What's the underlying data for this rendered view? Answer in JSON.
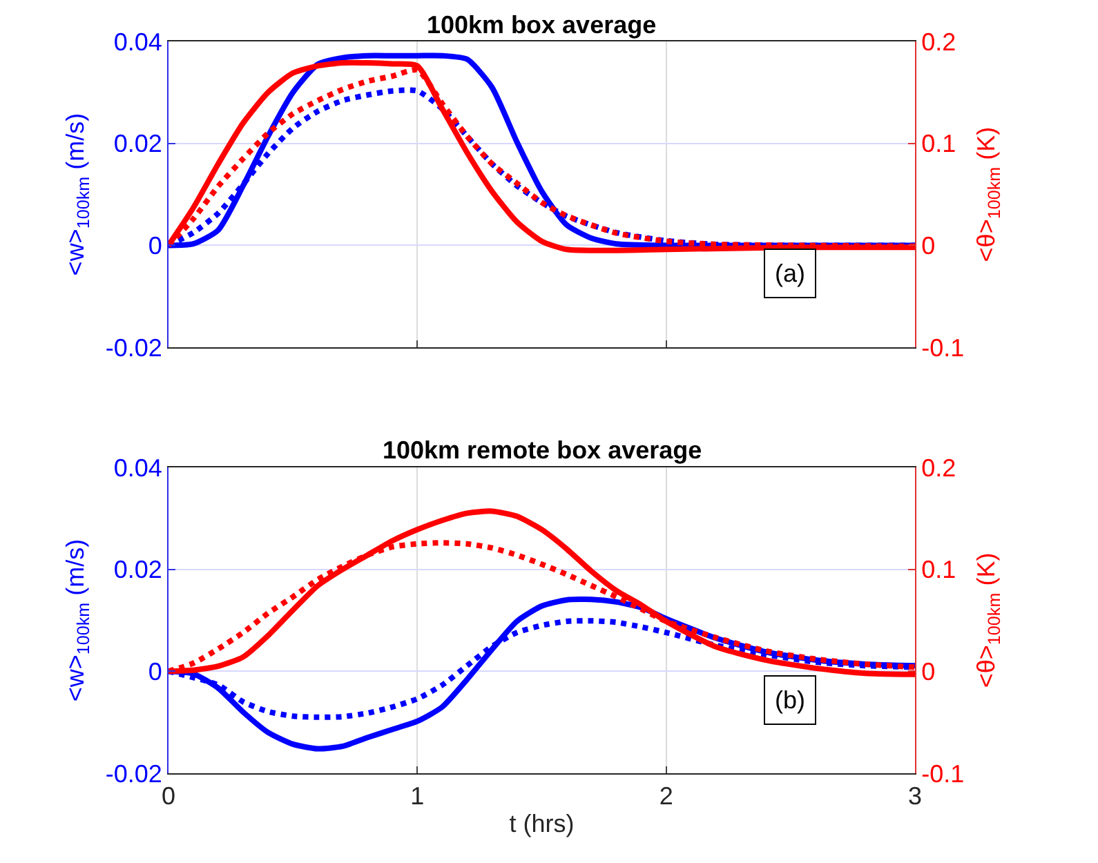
{
  "chart_data": [
    {
      "type": "line",
      "title": "100km box average",
      "ylabel": "<w>$_{100km}$ (m/s)",
      "y2label": "<θ>$_{100km}$ (K)",
      "annotations": [
        "(a)"
      ],
      "xlim": [
        0,
        3
      ],
      "xticks": [
        0,
        1,
        2,
        3
      ],
      "ylim": [
        -0.02,
        0.04
      ],
      "yticks": [
        -0.02,
        0,
        0.02,
        0.04
      ],
      "y2lim": [
        -0.1,
        0.2
      ],
      "y2ticks": [
        -0.1,
        0,
        0.1,
        0.2
      ],
      "grid": true,
      "tick_labels": "y",
      "series": [
        {
          "color": "#0000ff",
          "line_style": "solid",
          "x": [
            0,
            0.1,
            0.2,
            0.3,
            0.4,
            0.5,
            0.6,
            0.7,
            0.8,
            0.9,
            1.0,
            1.1,
            1.2,
            1.3,
            1.4,
            1.5,
            1.6,
            1.7,
            1.8,
            2.0,
            2.5,
            3.0
          ],
          "values": [
            0,
            0.0003,
            0.003,
            0.0117,
            0.0214,
            0.03,
            0.0355,
            0.0368,
            0.0372,
            0.0372,
            0.0372,
            0.0372,
            0.0365,
            0.031,
            0.0203,
            0.0106,
            0.004,
            0.0014,
            0.0003,
            0,
            0,
            0
          ]
        },
        {
          "color": "#ff0000",
          "line_style": "solid",
          "axis": "y2",
          "x": [
            0,
            0.1,
            0.2,
            0.3,
            0.4,
            0.5,
            0.6,
            0.7,
            0.8,
            0.9,
            1.0,
            1.1,
            1.2,
            1.3,
            1.4,
            1.5,
            1.6,
            1.8,
            2.0,
            2.5,
            3.0
          ],
          "values": [
            0,
            0.037,
            0.08,
            0.12,
            0.15,
            0.169,
            0.176,
            0.179,
            0.179,
            0.178,
            0.176,
            0.134,
            0.091,
            0.053,
            0.023,
            0.004,
            -0.004,
            -0.005,
            -0.004,
            -0.002,
            -0.002
          ]
        },
        {
          "color": "#0000ff",
          "line_style": "dotted",
          "x": [
            0,
            0.1,
            0.2,
            0.3,
            0.4,
            0.5,
            0.6,
            0.7,
            0.8,
            0.9,
            1.0,
            1.1,
            1.2,
            1.3,
            1.4,
            1.5,
            1.6,
            1.8,
            2.0,
            2.2,
            2.5,
            3.0
          ],
          "values": [
            0,
            0.0025,
            0.0063,
            0.012,
            0.018,
            0.023,
            0.0263,
            0.0284,
            0.0295,
            0.0303,
            0.0303,
            0.0268,
            0.0214,
            0.016,
            0.0117,
            0.0084,
            0.0057,
            0.0025,
            0.0009,
            0.0002,
            0,
            0
          ]
        },
        {
          "color": "#ff0000",
          "line_style": "dotted",
          "axis": "y2",
          "x": [
            0,
            0.1,
            0.2,
            0.3,
            0.4,
            0.5,
            0.6,
            0.7,
            0.8,
            0.9,
            1.0,
            1.1,
            1.2,
            1.3,
            1.4,
            1.5,
            1.6,
            1.8,
            2.0,
            2.2,
            2.5,
            3.0
          ],
          "values": [
            0,
            0.026,
            0.058,
            0.085,
            0.11,
            0.129,
            0.142,
            0.153,
            0.161,
            0.166,
            0.172,
            0.139,
            0.107,
            0.08,
            0.061,
            0.042,
            0.029,
            0.012,
            0.004,
            0.001,
            0,
            -0.001
          ]
        }
      ]
    },
    {
      "type": "line",
      "title": "100km remote box average",
      "xlabel": "t (hrs)",
      "ylabel": "<w>$_{100km}$ (m/s)",
      "y2label": "<θ>$_{100km}$ (K)",
      "annotations": [
        "(b)"
      ],
      "xlim": [
        0,
        3
      ],
      "xticks": [
        0,
        1,
        2,
        3
      ],
      "ylim": [
        -0.02,
        0.04
      ],
      "yticks": [
        -0.02,
        0,
        0.02,
        0.04
      ],
      "y2lim": [
        -0.1,
        0.2
      ],
      "y2ticks": [
        -0.1,
        0,
        0.1,
        0.2
      ],
      "grid": true,
      "series": [
        {
          "color": "#0000ff",
          "line_style": "solid",
          "x": [
            0,
            0.1,
            0.2,
            0.3,
            0.4,
            0.5,
            0.6,
            0.7,
            0.8,
            0.9,
            1.0,
            1.1,
            1.2,
            1.3,
            1.4,
            1.5,
            1.6,
            1.7,
            1.8,
            1.9,
            2.0,
            2.2,
            2.4,
            2.6,
            2.8,
            3.0
          ],
          "values": [
            0,
            -0.0005,
            -0.0033,
            -0.008,
            -0.012,
            -0.0143,
            -0.0152,
            -0.0147,
            -0.013,
            -0.0114,
            -0.0098,
            -0.007,
            -0.0016,
            0.0043,
            0.0098,
            0.0128,
            0.014,
            0.0141,
            0.0136,
            0.0125,
            0.0103,
            0.0065,
            0.0038,
            0.0022,
            0.0014,
            0.0011
          ]
        },
        {
          "color": "#ff0000",
          "line_style": "solid",
          "axis": "y2",
          "x": [
            0,
            0.1,
            0.2,
            0.3,
            0.4,
            0.5,
            0.6,
            0.7,
            0.8,
            0.9,
            1.0,
            1.1,
            1.2,
            1.3,
            1.4,
            1.5,
            1.6,
            1.7,
            1.8,
            1.9,
            2.0,
            2.2,
            2.4,
            2.6,
            2.8,
            3.0
          ],
          "values": [
            0,
            0.001,
            0.005,
            0.014,
            0.035,
            0.06,
            0.084,
            0.1,
            0.114,
            0.128,
            0.139,
            0.148,
            0.155,
            0.157,
            0.152,
            0.139,
            0.12,
            0.098,
            0.079,
            0.065,
            0.049,
            0.024,
            0.011,
            0.003,
            -0.002,
            -0.003
          ]
        },
        {
          "color": "#0000ff",
          "line_style": "dotted",
          "x": [
            0,
            0.2,
            0.3,
            0.4,
            0.5,
            0.6,
            0.7,
            0.8,
            0.9,
            1.0,
            1.1,
            1.2,
            1.3,
            1.4,
            1.5,
            1.6,
            1.7,
            1.8,
            1.9,
            2.0,
            2.2,
            2.4,
            2.6,
            2.8,
            3.0
          ],
          "values": [
            0,
            -0.0027,
            -0.006,
            -0.0079,
            -0.0088,
            -0.009,
            -0.0089,
            -0.0082,
            -0.007,
            -0.0054,
            -0.0027,
            0.0011,
            0.0049,
            0.0076,
            0.009,
            0.0098,
            0.0099,
            0.0096,
            0.0087,
            0.0076,
            0.0051,
            0.0033,
            0.0018,
            0.0011,
            0.0008
          ]
        },
        {
          "color": "#ff0000",
          "line_style": "dotted",
          "axis": "y2",
          "x": [
            0,
            0.1,
            0.2,
            0.3,
            0.4,
            0.5,
            0.6,
            0.7,
            0.8,
            0.9,
            1.0,
            1.1,
            1.2,
            1.3,
            1.4,
            1.5,
            1.6,
            1.7,
            1.8,
            1.9,
            2.0,
            2.2,
            2.4,
            2.6,
            2.8,
            3.0
          ],
          "values": [
            0,
            0.008,
            0.022,
            0.038,
            0.057,
            0.073,
            0.09,
            0.103,
            0.114,
            0.122,
            0.125,
            0.126,
            0.125,
            0.121,
            0.114,
            0.105,
            0.095,
            0.084,
            0.073,
            0.061,
            0.049,
            0.033,
            0.02,
            0.012,
            0.007,
            0.004
          ]
        }
      ]
    }
  ]
}
